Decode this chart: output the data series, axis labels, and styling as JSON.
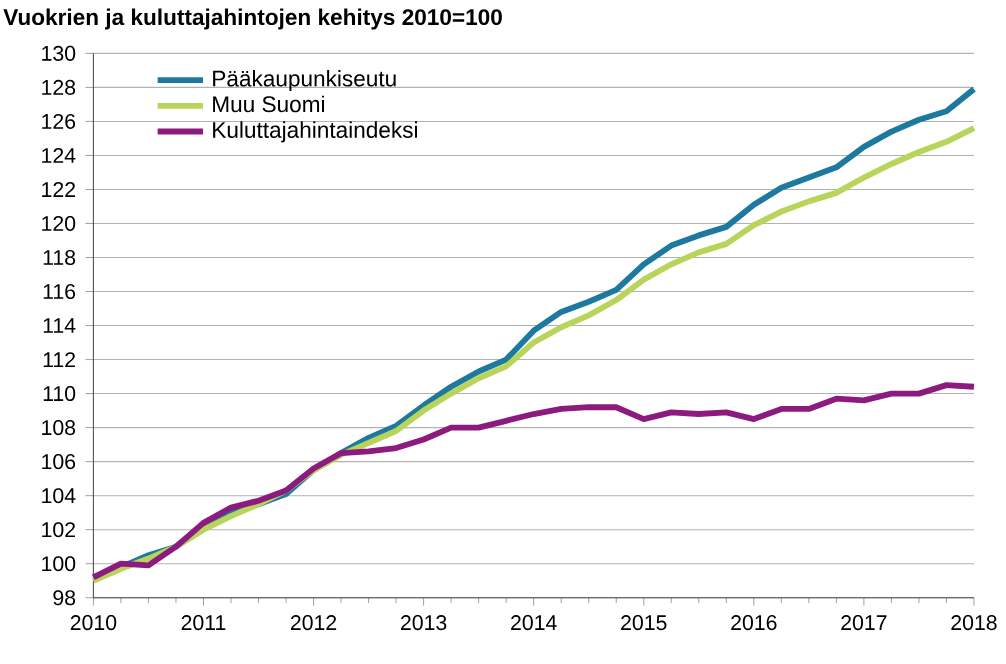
{
  "chart_data": {
    "type": "line",
    "title": "Vuokrien ja kuluttajahintojen kehitys 2010=100",
    "x": [
      2010,
      2010.25,
      2010.5,
      2010.75,
      2011,
      2011.25,
      2011.5,
      2011.75,
      2012,
      2012.25,
      2012.5,
      2012.75,
      2013,
      2013.25,
      2013.5,
      2013.75,
      2014,
      2014.25,
      2014.5,
      2014.75,
      2015,
      2015.25,
      2015.5,
      2015.75,
      2016,
      2016.25,
      2016.5,
      2016.75,
      2017,
      2017.25,
      2017.5,
      2017.75,
      2018
    ],
    "series": [
      {
        "name": "Pääkaupunkiseutu",
        "color": "#1d7a9e",
        "values": [
          99.2,
          99.8,
          100.5,
          101.0,
          102.2,
          103.0,
          103.5,
          104.1,
          105.5,
          106.5,
          107.4,
          108.1,
          109.3,
          110.4,
          111.3,
          112.0,
          113.7,
          114.8,
          115.4,
          116.1,
          117.6,
          118.7,
          119.3,
          119.8,
          121.1,
          122.1,
          122.7,
          123.3,
          124.5,
          125.4,
          126.1,
          126.6,
          127.9
        ]
      },
      {
        "name": "Muu Suomi",
        "color": "#b8d45a",
        "values": [
          99.0,
          99.7,
          100.3,
          101.0,
          102.0,
          102.8,
          103.5,
          104.3,
          105.5,
          106.4,
          107.1,
          107.8,
          109.0,
          110.0,
          110.9,
          111.6,
          113.0,
          113.9,
          114.6,
          115.5,
          116.7,
          117.6,
          118.3,
          118.8,
          119.9,
          120.7,
          121.3,
          121.8,
          122.7,
          123.5,
          124.2,
          124.8,
          125.6
        ]
      },
      {
        "name": "Kuluttajahintaindeksi",
        "color": "#8c1a7f",
        "values": [
          99.2,
          100.0,
          99.9,
          101.0,
          102.4,
          103.3,
          103.7,
          104.3,
          105.6,
          106.5,
          106.6,
          106.8,
          107.3,
          108.0,
          108.0,
          108.4,
          108.8,
          109.1,
          109.2,
          109.2,
          108.5,
          108.9,
          108.8,
          108.9,
          108.5,
          109.1,
          109.1,
          109.7,
          109.6,
          110.0,
          110.0,
          110.5,
          110.4
        ]
      }
    ],
    "xlim": [
      2010,
      2018
    ],
    "xticks": [
      2010,
      2011,
      2012,
      2013,
      2014,
      2015,
      2016,
      2017,
      2018
    ],
    "ylim": [
      98,
      130
    ],
    "yticks": [
      98,
      100,
      102,
      104,
      106,
      108,
      110,
      112,
      114,
      116,
      118,
      120,
      122,
      124,
      126,
      128,
      130
    ],
    "grid": "y",
    "legend": "top left",
    "marker": "none",
    "line_style": "solid"
  }
}
